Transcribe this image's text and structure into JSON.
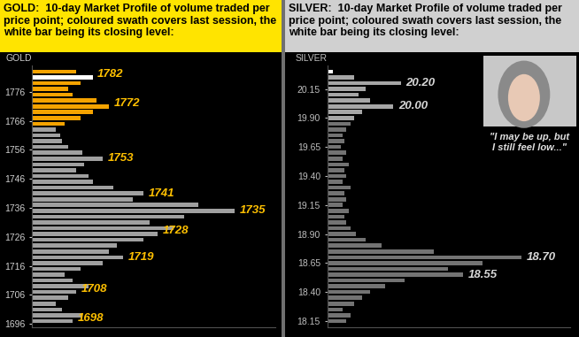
{
  "chart_data": [
    {
      "type": "bar",
      "orientation": "horizontal",
      "title": "GOLD:  10-day Market Profile of volume traded per price point; coloured swath covers last session, the white bar being its closing level:",
      "y_label": "GOLD",
      "y": [
        1697,
        1699,
        1701,
        1703,
        1705,
        1707,
        1709,
        1711,
        1713,
        1715,
        1717,
        1719,
        1721,
        1723,
        1725,
        1727,
        1729,
        1731,
        1733,
        1735,
        1737,
        1739,
        1741,
        1743,
        1745,
        1747,
        1749,
        1751,
        1753,
        1755,
        1757,
        1759,
        1761,
        1763,
        1765,
        1767,
        1769,
        1771,
        1773,
        1775,
        1777,
        1779,
        1781,
        1783
      ],
      "values": [
        20,
        25,
        15,
        12,
        18,
        22,
        28,
        20,
        16,
        24,
        35,
        45,
        38,
        42,
        55,
        62,
        70,
        58,
        75,
        100,
        82,
        50,
        55,
        40,
        30,
        28,
        22,
        26,
        35,
        25,
        18,
        15,
        14,
        12,
        16,
        24,
        30,
        38,
        32,
        20,
        18,
        24,
        30,
        22
      ],
      "colors": [
        "#A0A0A0",
        "#A0A0A0",
        "#A0A0A0",
        "#A0A0A0",
        "#A0A0A0",
        "#A0A0A0",
        "#A0A0A0",
        "#A0A0A0",
        "#A0A0A0",
        "#A0A0A0",
        "#A0A0A0",
        "#A0A0A0",
        "#A0A0A0",
        "#A0A0A0",
        "#A0A0A0",
        "#A0A0A0",
        "#A0A0A0",
        "#A0A0A0",
        "#A0A0A0",
        "#A0A0A0",
        "#A0A0A0",
        "#A0A0A0",
        "#A0A0A0",
        "#A0A0A0",
        "#A0A0A0",
        "#A0A0A0",
        "#A0A0A0",
        "#A0A0A0",
        "#A0A0A0",
        "#A0A0A0",
        "#A0A0A0",
        "#A0A0A0",
        "#A0A0A0",
        "#A0A0A0",
        "#F5A300",
        "#F5A300",
        "#F5A300",
        "#F5A300",
        "#F5A300",
        "#F5A300",
        "#F5A300",
        "#F5A300",
        "#FFFFFF",
        "#F5A300"
      ],
      "ylim": [
        1695,
        1785
      ],
      "yticks": [
        1696,
        1706,
        1716,
        1726,
        1736,
        1746,
        1756,
        1766,
        1776
      ],
      "xlim": [
        0,
        120
      ],
      "xticks": [],
      "tick_labels": "y",
      "annotations": [
        {
          "label": "1782",
          "value": 1782
        },
        {
          "label": "1772",
          "value": 1772
        },
        {
          "label": "1753",
          "value": 1753
        },
        {
          "label": "1741",
          "value": 1741
        },
        {
          "label": "1735",
          "value": 1735
        },
        {
          "label": "1728",
          "value": 1728
        },
        {
          "label": "1719",
          "value": 1719
        },
        {
          "label": "1708",
          "value": 1708
        },
        {
          "label": "1698",
          "value": 1698
        }
      ]
    },
    {
      "type": "bar",
      "orientation": "horizontal",
      "title": "SILVER:  10-day Market Profile of volume traded per price point; coloured swath covers last session, the white bar being its closing level:",
      "y_label": "SILVER",
      "y": [
        18.15,
        18.2,
        18.25,
        18.3,
        18.35,
        18.4,
        18.45,
        18.5,
        18.55,
        18.6,
        18.65,
        18.7,
        18.75,
        18.8,
        18.85,
        18.9,
        18.95,
        19.0,
        19.05,
        19.1,
        19.15,
        19.2,
        19.25,
        19.3,
        19.35,
        19.4,
        19.45,
        19.5,
        19.55,
        19.6,
        19.65,
        19.7,
        19.75,
        19.8,
        19.85,
        19.9,
        19.95,
        20.0,
        20.05,
        20.1,
        20.15,
        20.2,
        20.25,
        20.3
      ],
      "values": [
        10,
        12,
        8,
        14,
        18,
        22,
        30,
        40,
        70,
        62,
        80,
        100,
        55,
        28,
        20,
        15,
        12,
        10,
        9,
        11,
        8,
        10,
        9,
        12,
        8,
        10,
        9,
        11,
        8,
        10,
        7,
        9,
        8,
        10,
        12,
        14,
        18,
        34,
        22,
        16,
        20,
        38,
        14,
        3
      ],
      "colors": [
        "#737373",
        "#737373",
        "#737373",
        "#737373",
        "#737373",
        "#737373",
        "#737373",
        "#737373",
        "#737373",
        "#737373",
        "#737373",
        "#737373",
        "#737373",
        "#737373",
        "#737373",
        "#737373",
        "#737373",
        "#737373",
        "#737373",
        "#737373",
        "#737373",
        "#737373",
        "#737373",
        "#737373",
        "#737373",
        "#737373",
        "#737373",
        "#737373",
        "#737373",
        "#737373",
        "#737373",
        "#737373",
        "#737373",
        "#737373",
        "#737373",
        "#A6A6A6",
        "#A6A6A6",
        "#A6A6A6",
        "#A6A6A6",
        "#A6A6A6",
        "#A6A6A6",
        "#A6A6A6",
        "#A6A6A6",
        "#FFFFFF"
      ],
      "ylim": [
        18.1,
        20.35
      ],
      "yticks": [
        18.15,
        {
          "value": 18.4,
          "label": "18.40"
        },
        18.65,
        {
          "value": 18.9,
          "label": "18.90"
        },
        19.15,
        {
          "value": 19.4,
          "label": "19.40"
        },
        19.65,
        {
          "value": 19.9,
          "label": "19.90"
        },
        20.15
      ],
      "xlim": [
        0,
        125
      ],
      "xticks": [],
      "tick_labels": "y",
      "annotations": [
        {
          "label": "20.20",
          "value": 20.2
        },
        {
          "label": "20.00",
          "value": 20.0
        },
        {
          "label": "18.70",
          "value": 18.7
        },
        {
          "label": "18.55",
          "value": 18.55
        }
      ],
      "quote": "\"I may be up, but\nI still feel low...\""
    }
  ]
}
